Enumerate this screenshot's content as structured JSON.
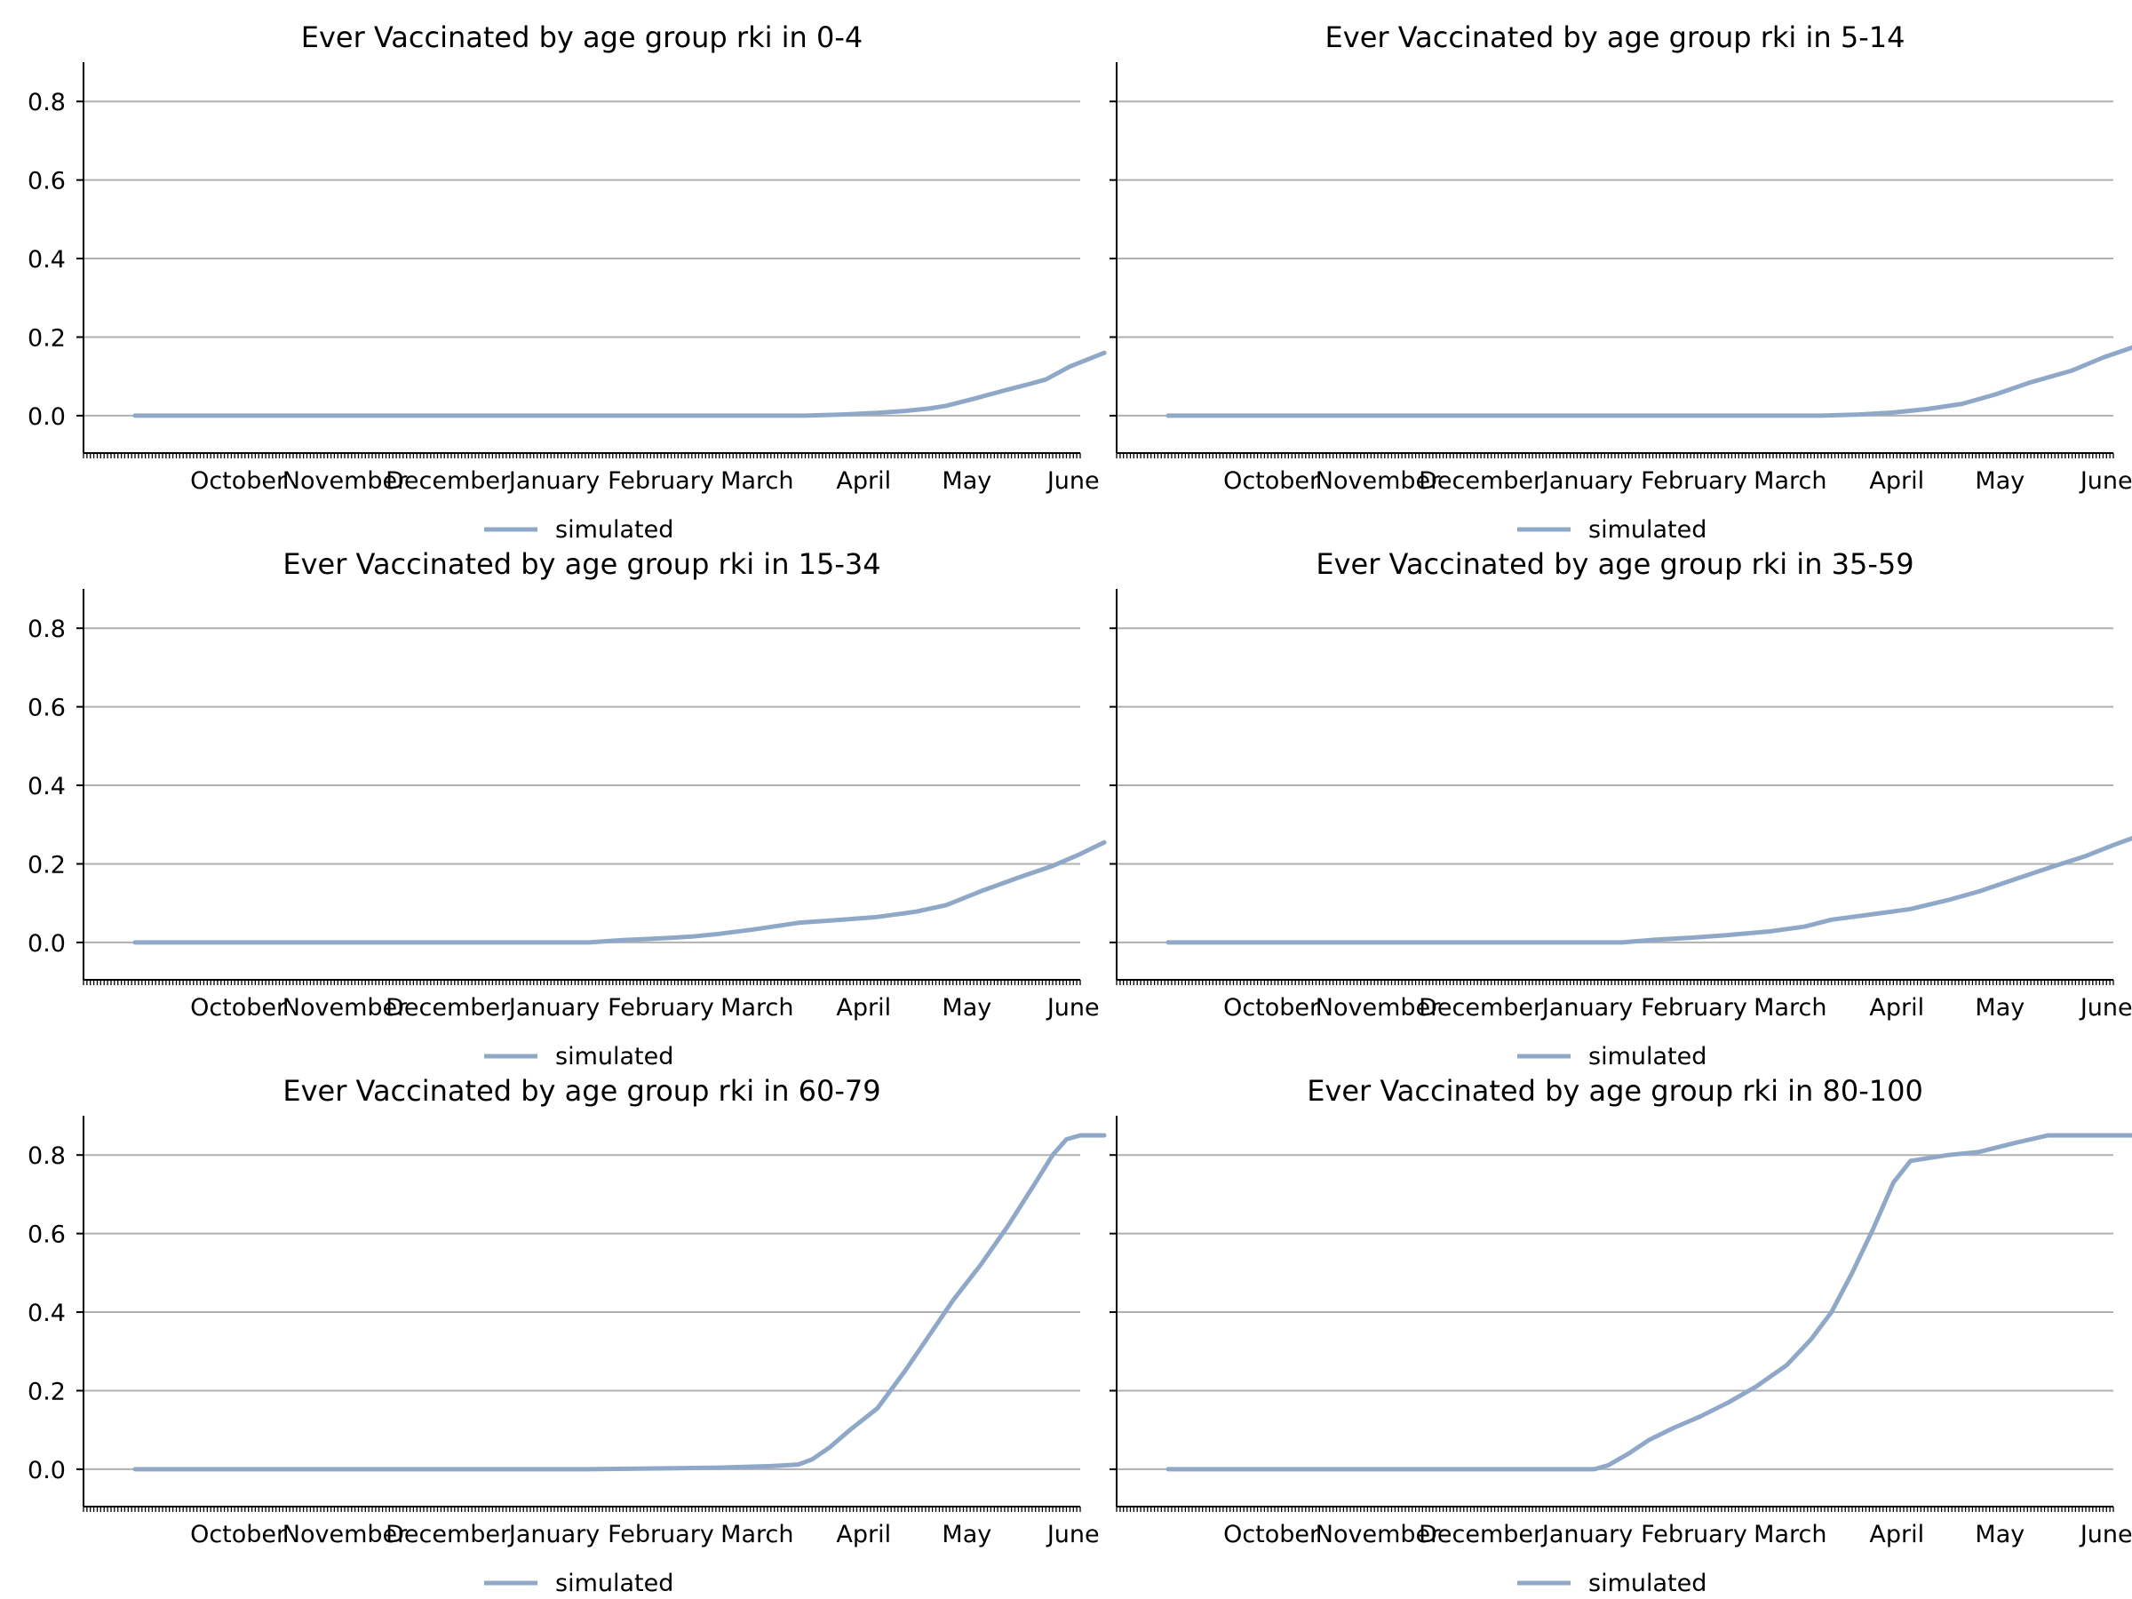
{
  "figure": {
    "line_color": "#8fa8c8",
    "grid_color": "#b0b0b0",
    "axis_color": "#000000"
  },
  "chart_data": [
    {
      "type": "line",
      "title": "Ever Vaccinated by age group rki in 0-4",
      "xlabel": "",
      "ylabel": "",
      "ylim": [
        -0.05,
        0.9
      ],
      "y_ticks": [
        "0.0",
        "0.2",
        "0.4",
        "0.6",
        "0.8"
      ],
      "y_tick_values": [
        0.0,
        0.2,
        0.4,
        0.6,
        0.8
      ],
      "x_ticks": [
        "October",
        "November",
        "December",
        "January",
        "February",
        "March",
        "April",
        "May",
        "June"
      ],
      "grid": "horizontal",
      "legend": [
        "simulated"
      ],
      "legend_position": "below",
      "series": [
        {
          "name": "simulated",
          "points": [
            [
              "2020-09-16",
              0.0
            ],
            [
              "2021-03-30",
              0.0
            ],
            [
              "2021-04-10",
              0.003
            ],
            [
              "2021-04-20",
              0.007
            ],
            [
              "2021-04-28",
              0.012
            ],
            [
              "2021-05-05",
              0.018
            ],
            [
              "2021-05-10",
              0.025
            ],
            [
              "2021-05-18",
              0.043
            ],
            [
              "2021-05-26",
              0.062
            ],
            [
              "2021-06-03",
              0.08
            ],
            [
              "2021-06-08",
              0.092
            ],
            [
              "2021-06-15",
              0.125
            ],
            [
              "2021-06-25",
              0.16
            ]
          ]
        }
      ]
    },
    {
      "type": "line",
      "title": "Ever Vaccinated by age group rki in 5-14",
      "xlabel": "",
      "ylabel": "",
      "ylim": [
        -0.05,
        0.9
      ],
      "y_ticks": [
        "0.0",
        "0.2",
        "0.4",
        "0.6",
        "0.8"
      ],
      "y_tick_values": [
        0.0,
        0.2,
        0.4,
        0.6,
        0.8
      ],
      "x_ticks": [
        "October",
        "November",
        "December",
        "January",
        "February",
        "March",
        "April",
        "May",
        "June"
      ],
      "grid": "horizontal",
      "legend": [
        "simulated"
      ],
      "legend_position": "below",
      "series": [
        {
          "name": "simulated",
          "points": [
            [
              "2020-09-16",
              0.0
            ],
            [
              "2021-03-25",
              0.0
            ],
            [
              "2021-04-05",
              0.003
            ],
            [
              "2021-04-15",
              0.008
            ],
            [
              "2021-04-25",
              0.017
            ],
            [
              "2021-05-05",
              0.03
            ],
            [
              "2021-05-15",
              0.055
            ],
            [
              "2021-05-25",
              0.085
            ],
            [
              "2021-06-06",
              0.115
            ],
            [
              "2021-06-15",
              0.148
            ],
            [
              "2021-06-25",
              0.178
            ]
          ]
        }
      ]
    },
    {
      "type": "line",
      "title": "Ever Vaccinated by age group rki in 15-34",
      "xlabel": "",
      "ylabel": "",
      "ylim": [
        -0.05,
        0.9
      ],
      "y_ticks": [
        "0.0",
        "0.2",
        "0.4",
        "0.6",
        "0.8"
      ],
      "y_tick_values": [
        0.0,
        0.2,
        0.4,
        0.6,
        0.8
      ],
      "x_ticks": [
        "October",
        "November",
        "December",
        "January",
        "February",
        "March",
        "April",
        "May",
        "June"
      ],
      "grid": "horizontal",
      "legend": [
        "simulated"
      ],
      "legend_position": "below",
      "series": [
        {
          "name": "simulated",
          "points": [
            [
              "2020-09-16",
              0.0
            ],
            [
              "2021-01-26",
              0.0
            ],
            [
              "2021-02-05",
              0.006
            ],
            [
              "2021-02-15",
              0.01
            ],
            [
              "2021-02-25",
              0.015
            ],
            [
              "2021-03-05",
              0.022
            ],
            [
              "2021-03-15",
              0.033
            ],
            [
              "2021-03-28",
              0.05
            ],
            [
              "2021-04-10",
              0.058
            ],
            [
              "2021-04-20",
              0.065
            ],
            [
              "2021-05-01",
              0.078
            ],
            [
              "2021-05-10",
              0.095
            ],
            [
              "2021-05-20",
              0.13
            ],
            [
              "2021-06-01",
              0.168
            ],
            [
              "2021-06-10",
              0.195
            ],
            [
              "2021-06-18",
              0.225
            ],
            [
              "2021-06-25",
              0.255
            ]
          ]
        }
      ]
    },
    {
      "type": "line",
      "title": "Ever Vaccinated by age group rki in 35-59",
      "xlabel": "",
      "ylabel": "",
      "ylim": [
        -0.05,
        0.9
      ],
      "y_ticks": [
        "0.0",
        "0.2",
        "0.4",
        "0.6",
        "0.8"
      ],
      "y_tick_values": [
        0.0,
        0.2,
        0.4,
        0.6,
        0.8
      ],
      "x_ticks": [
        "October",
        "November",
        "December",
        "January",
        "February",
        "March",
        "April",
        "May",
        "June"
      ],
      "grid": "horizontal",
      "legend": [
        "simulated"
      ],
      "legend_position": "below",
      "series": [
        {
          "name": "simulated",
          "points": [
            [
              "2020-09-16",
              0.0
            ],
            [
              "2021-01-26",
              0.0
            ],
            [
              "2021-02-05",
              0.007
            ],
            [
              "2021-02-15",
              0.012
            ],
            [
              "2021-02-25",
              0.018
            ],
            [
              "2021-03-10",
              0.028
            ],
            [
              "2021-03-20",
              0.04
            ],
            [
              "2021-03-28",
              0.058
            ],
            [
              "2021-04-10",
              0.073
            ],
            [
              "2021-04-20",
              0.085
            ],
            [
              "2021-05-01",
              0.108
            ],
            [
              "2021-05-10",
              0.13
            ],
            [
              "2021-05-20",
              0.16
            ],
            [
              "2021-06-01",
              0.195
            ],
            [
              "2021-06-10",
              0.22
            ],
            [
              "2021-06-18",
              0.248
            ],
            [
              "2021-06-25",
              0.27
            ]
          ]
        }
      ]
    },
    {
      "type": "line",
      "title": "Ever Vaccinated by age group rki in 60-79",
      "xlabel": "",
      "ylabel": "",
      "ylim": [
        -0.05,
        0.9
      ],
      "y_ticks": [
        "0.0",
        "0.2",
        "0.4",
        "0.6",
        "0.8"
      ],
      "y_tick_values": [
        0.0,
        0.2,
        0.4,
        0.6,
        0.8
      ],
      "x_ticks": [
        "October",
        "November",
        "December",
        "January",
        "February",
        "March",
        "April",
        "May",
        "June"
      ],
      "grid": "horizontal",
      "legend": [
        "simulated"
      ],
      "legend_position": "below",
      "series": [
        {
          "name": "simulated",
          "points": [
            [
              "2020-09-16",
              0.0
            ],
            [
              "2021-01-26",
              0.0
            ],
            [
              "2021-02-15",
              0.002
            ],
            [
              "2021-03-05",
              0.004
            ],
            [
              "2021-03-20",
              0.008
            ],
            [
              "2021-03-28",
              0.012
            ],
            [
              "2021-04-01",
              0.025
            ],
            [
              "2021-04-06",
              0.055
            ],
            [
              "2021-04-12",
              0.1
            ],
            [
              "2021-04-20",
              0.155
            ],
            [
              "2021-04-28",
              0.25
            ],
            [
              "2021-05-05",
              0.34
            ],
            [
              "2021-05-12",
              0.43
            ],
            [
              "2021-05-20",
              0.52
            ],
            [
              "2021-05-28",
              0.62
            ],
            [
              "2021-06-05",
              0.73
            ],
            [
              "2021-06-10",
              0.8
            ],
            [
              "2021-06-14",
              0.84
            ],
            [
              "2021-06-18",
              0.85
            ],
            [
              "2021-06-25",
              0.85
            ]
          ]
        }
      ]
    },
    {
      "type": "line",
      "title": "Ever Vaccinated by age group rki in 80-100",
      "xlabel": "",
      "ylabel": "",
      "ylim": [
        -0.05,
        0.9
      ],
      "y_ticks": [
        "0.0",
        "0.2",
        "0.4",
        "0.6",
        "0.8"
      ],
      "y_tick_values": [
        0.0,
        0.2,
        0.4,
        0.6,
        0.8
      ],
      "x_ticks": [
        "October",
        "November",
        "December",
        "January",
        "February",
        "March",
        "April",
        "May",
        "June"
      ],
      "grid": "horizontal",
      "legend": [
        "simulated"
      ],
      "legend_position": "below",
      "series": [
        {
          "name": "simulated",
          "points": [
            [
              "2020-09-16",
              0.0
            ],
            [
              "2021-01-18",
              0.0
            ],
            [
              "2021-01-22",
              0.01
            ],
            [
              "2021-01-28",
              0.04
            ],
            [
              "2021-02-03",
              0.075
            ],
            [
              "2021-02-10",
              0.105
            ],
            [
              "2021-02-18",
              0.135
            ],
            [
              "2021-02-26",
              0.17
            ],
            [
              "2021-03-06",
              0.21
            ],
            [
              "2021-03-15",
              0.265
            ],
            [
              "2021-03-22",
              0.33
            ],
            [
              "2021-03-28",
              0.4
            ],
            [
              "2021-04-03",
              0.5
            ],
            [
              "2021-04-09",
              0.61
            ],
            [
              "2021-04-15",
              0.73
            ],
            [
              "2021-04-20",
              0.785
            ],
            [
              "2021-05-01",
              0.8
            ],
            [
              "2021-05-10",
              0.808
            ],
            [
              "2021-05-20",
              0.83
            ],
            [
              "2021-05-30",
              0.85
            ],
            [
              "2021-06-25",
              0.85
            ]
          ]
        }
      ]
    }
  ]
}
